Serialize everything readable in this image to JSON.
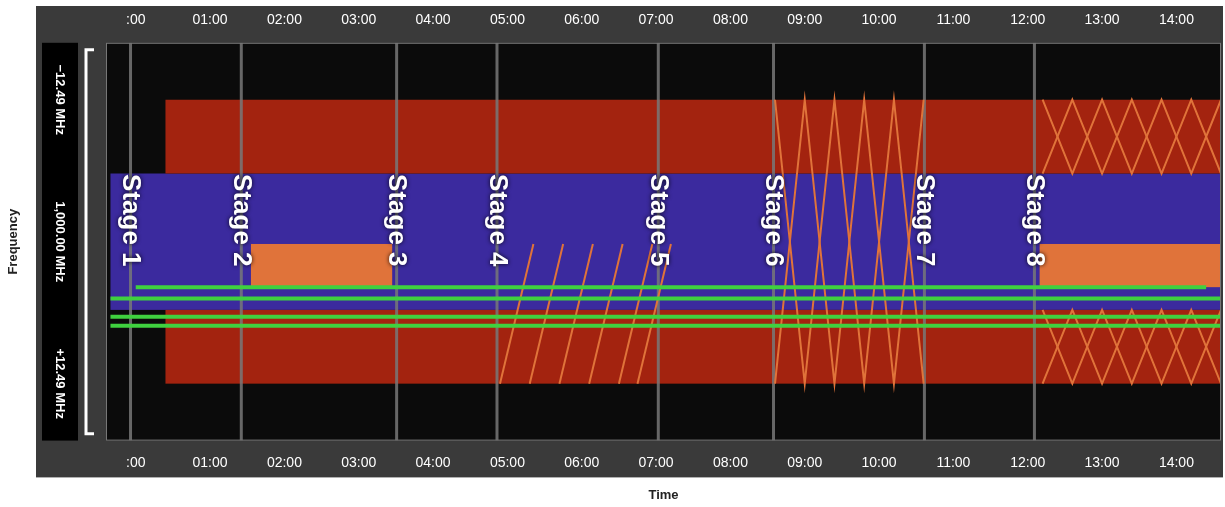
{
  "chart_data": {
    "type": "spectrogram",
    "x_label": "Time",
    "y_label": "Frequency",
    "xlim": [
      -0.4,
      14.6
    ],
    "xticks": [
      {
        "value": 0,
        "label": ":00"
      },
      {
        "value": 1,
        "label": "01:00"
      },
      {
        "value": 2,
        "label": "02:00"
      },
      {
        "value": 3,
        "label": "03:00"
      },
      {
        "value": 4,
        "label": "04:00"
      },
      {
        "value": 5,
        "label": "05:00"
      },
      {
        "value": 6,
        "label": "06:00"
      },
      {
        "value": 7,
        "label": "07:00"
      },
      {
        "value": 8,
        "label": "08:00"
      },
      {
        "value": 9,
        "label": "09:00"
      },
      {
        "value": 10,
        "label": "10:00"
      },
      {
        "value": 11,
        "label": "11:00"
      },
      {
        "value": 12,
        "label": "12:00"
      },
      {
        "value": 13,
        "label": "13:00"
      },
      {
        "value": 14,
        "label": "14:00"
      }
    ],
    "ylim": [
      -17.5,
      17.5
    ],
    "yticks": [
      {
        "value": -12.49,
        "label": "−12.49 MHz"
      },
      {
        "value": 0,
        "label": "1,000.00 MHz"
      },
      {
        "value": 12.49,
        "label": "+12.49 MHz"
      }
    ],
    "regions": [
      {
        "x": [
          -0.34,
          14.6
        ],
        "y": [
          -6,
          6
        ],
        "color": "#3b2a9e"
      },
      {
        "x": [
          0.4,
          14.6
        ],
        "y": [
          -12.49,
          -6
        ],
        "color": "#a3230f"
      },
      {
        "x": [
          0.4,
          14.6
        ],
        "y": [
          6,
          12.49
        ],
        "color": "#a3230f"
      },
      {
        "x": [
          1.55,
          3.45
        ],
        "y": [
          0.2,
          4
        ],
        "color": "#e0733a"
      },
      {
        "x": [
          12.16,
          14.6
        ],
        "y": [
          0.2,
          4
        ],
        "color": "#e0733a"
      }
    ],
    "signals": [
      {
        "x": [
          0.0,
          14.4
        ],
        "values": [
          4.0,
          4.0
        ],
        "color": "#3fd13f",
        "line_style": "solid"
      },
      {
        "x": [
          -0.34,
          14.6
        ],
        "values": [
          5.0,
          5.0
        ],
        "color": "#3fd13f",
        "line_style": "solid"
      },
      {
        "x": [
          -0.34,
          14.6
        ],
        "values": [
          6.6,
          6.6
        ],
        "color": "#3fd13f",
        "line_style": "solid"
      },
      {
        "x": [
          -0.34,
          14.6
        ],
        "values": [
          7.4,
          7.4
        ],
        "color": "#3fd13f",
        "line_style": "solid"
      }
    ],
    "sweeps": [
      {
        "x": [
          4.9,
          5.35
        ],
        "values": [
          12.49,
          0.2
        ],
        "color": "#e0733a",
        "line_style": "solid"
      },
      {
        "x": [
          5.3,
          5.75
        ],
        "values": [
          12.49,
          0.2
        ],
        "color": "#e0733a",
        "line_style": "solid"
      },
      {
        "x": [
          5.7,
          6.15
        ],
        "values": [
          12.49,
          0.2
        ],
        "color": "#e0733a",
        "line_style": "solid"
      },
      {
        "x": [
          6.1,
          6.55
        ],
        "values": [
          12.49,
          0.2
        ],
        "color": "#e0733a",
        "line_style": "solid"
      },
      {
        "x": [
          6.5,
          6.95
        ],
        "values": [
          12.49,
          0.2
        ],
        "color": "#e0733a",
        "line_style": "solid"
      },
      {
        "x": [
          6.75,
          7.2
        ],
        "values": [
          12.49,
          0.2
        ],
        "color": "#e0733a",
        "line_style": "solid"
      },
      {
        "x": [
          8.6,
          9.0,
          9.4,
          9.8,
          10.2,
          10.6
        ],
        "values": [
          -12.49,
          12.49,
          -12.49,
          12.49,
          -12.49,
          12.49
        ],
        "color": "#e0733a",
        "line_style": "solid"
      },
      {
        "x": [
          8.6,
          9.0,
          9.4,
          9.8,
          10.2,
          10.6
        ],
        "values": [
          12.49,
          -12.49,
          12.49,
          -12.49,
          12.49,
          -12.49
        ],
        "color": "#e0733a",
        "line_style": "solid"
      },
      {
        "x": [
          12.2,
          12.6,
          13.0,
          13.4,
          13.8,
          14.2,
          14.6
        ],
        "values": [
          -12.49,
          -6,
          -12.49,
          -6,
          -12.49,
          -6,
          -12.49
        ],
        "color": "#e0733a",
        "line_style": "solid"
      },
      {
        "x": [
          12.2,
          12.6,
          13.0,
          13.4,
          13.8,
          14.2,
          14.6
        ],
        "values": [
          -6,
          -12.49,
          -6,
          -12.49,
          -6,
          -12.49,
          -6
        ],
        "color": "#e0733a",
        "line_style": "solid"
      },
      {
        "x": [
          12.2,
          12.6,
          13.0,
          13.4,
          13.8,
          14.2,
          14.6
        ],
        "values": [
          6,
          12.49,
          6,
          12.49,
          6,
          12.49,
          6
        ],
        "color": "#e0733a",
        "line_style": "solid"
      },
      {
        "x": [
          12.2,
          12.6,
          13.0,
          13.4,
          13.8,
          14.2,
          14.6
        ],
        "values": [
          12.49,
          6,
          12.49,
          6,
          12.49,
          6,
          12.49
        ],
        "color": "#e0733a",
        "line_style": "solid"
      }
    ],
    "annotations": [
      {
        "text": "Stage 1",
        "x": -0.07
      },
      {
        "text": "Stage 2",
        "x": 1.42
      },
      {
        "text": "Stage 3",
        "x": 3.51
      },
      {
        "text": "Stage 4",
        "x": 4.86
      },
      {
        "text": "Stage 5",
        "x": 7.03
      },
      {
        "text": "Stage 6",
        "x": 8.58
      },
      {
        "text": "Stage 7",
        "x": 10.61
      },
      {
        "text": "Stage 8",
        "x": 12.09
      }
    ]
  }
}
